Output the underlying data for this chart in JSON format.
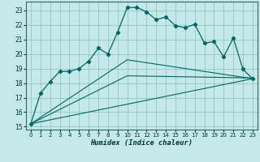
{
  "xlabel": "Humidex (Indice chaleur)",
  "background_color": "#c5e8e8",
  "grid_color": "#88c0c0",
  "line_color": "#006666",
  "xlim": [
    -0.5,
    23.5
  ],
  "ylim": [
    14.8,
    23.6
  ],
  "yticks": [
    15,
    16,
    17,
    18,
    19,
    20,
    21,
    22,
    23
  ],
  "xticks": [
    0,
    1,
    2,
    3,
    4,
    5,
    6,
    7,
    8,
    9,
    10,
    11,
    12,
    13,
    14,
    15,
    16,
    17,
    18,
    19,
    20,
    21,
    22,
    23
  ],
  "line1_x": [
    0,
    1,
    2,
    3,
    4,
    5,
    6,
    7,
    8,
    9,
    10,
    11,
    12,
    13,
    14,
    15,
    16,
    17,
    18,
    19,
    20,
    21,
    22,
    23
  ],
  "line1_y": [
    15.2,
    17.3,
    18.1,
    18.8,
    18.8,
    19.0,
    19.5,
    20.4,
    20.0,
    21.5,
    23.2,
    23.2,
    22.9,
    22.35,
    22.55,
    21.95,
    21.8,
    22.05,
    20.75,
    20.85,
    19.8,
    21.1,
    18.95,
    18.3
  ],
  "line2_x": [
    0,
    23
  ],
  "line2_y": [
    15.2,
    18.3
  ],
  "line3_x": [
    0,
    10,
    23
  ],
  "line3_y": [
    15.2,
    18.5,
    18.35
  ],
  "line4_x": [
    0,
    10,
    23
  ],
  "line4_y": [
    15.2,
    19.6,
    18.3
  ],
  "line5_x": [
    0,
    23
  ],
  "line5_y": [
    15.2,
    18.3
  ]
}
